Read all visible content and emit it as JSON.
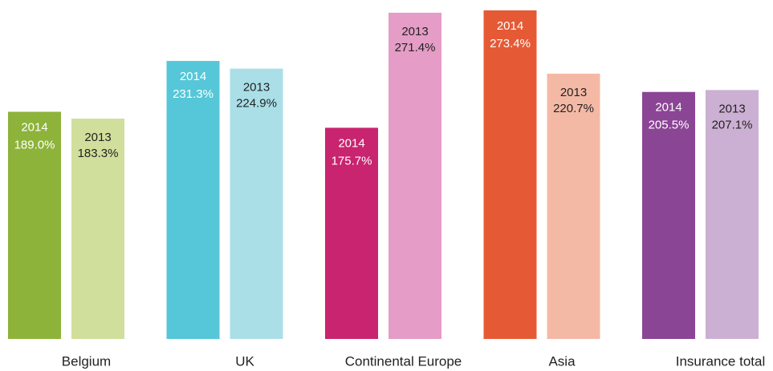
{
  "chart_data": {
    "type": "bar",
    "categories": [
      "Belgium",
      "UK",
      "Continental Europe",
      "Asia",
      "Insurance total"
    ],
    "series": [
      {
        "name": "2014",
        "colors": [
          "#8db33a",
          "#55c7d8",
          "#c9246f",
          "#e55a35",
          "#8b4595"
        ],
        "values": [
          189.0,
          231.3,
          175.7,
          273.4,
          205.5
        ],
        "value_labels": [
          "189.0%",
          "231.3%",
          "175.7%",
          "273.4%",
          "205.5%"
        ]
      },
      {
        "name": "2013",
        "colors": [
          "#d0df9b",
          "#aadfe8",
          "#e59cc6",
          "#f4b9a5",
          "#ccb0d3"
        ],
        "values": [
          183.3,
          224.9,
          271.4,
          220.7,
          207.1
        ],
        "value_labels": [
          "183.3%",
          "224.9%",
          "271.4%",
          "220.7%",
          "207.1%"
        ]
      }
    ]
  }
}
